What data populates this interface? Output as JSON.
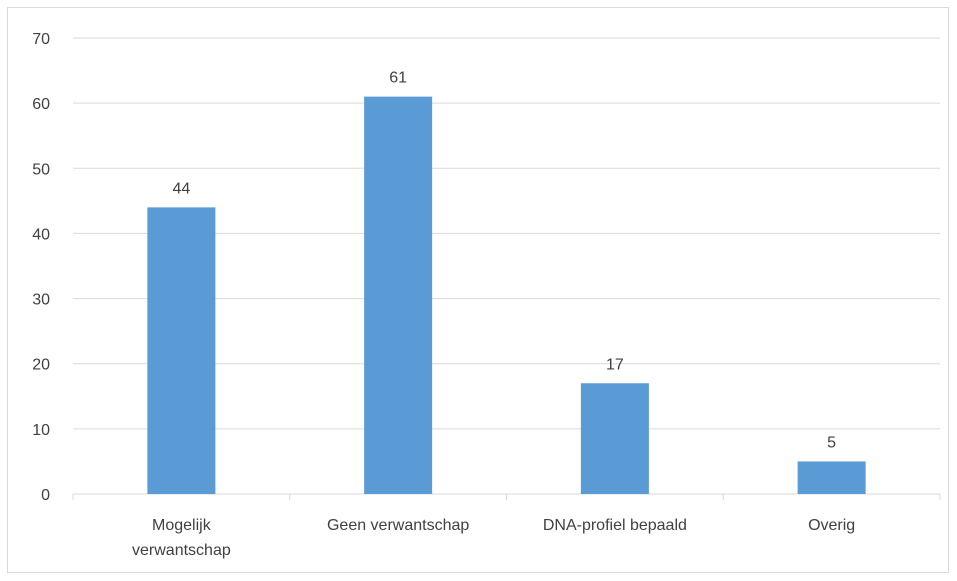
{
  "chart_data": {
    "type": "bar",
    "title": "",
    "xlabel": "",
    "ylabel": "",
    "categories": [
      [
        "Mogelijk",
        "verwantschap"
      ],
      [
        "Geen verwantschap"
      ],
      [
        "DNA-profiel bepaald"
      ],
      [
        "Overig"
      ]
    ],
    "values": [
      44,
      61,
      17,
      5
    ],
    "data_labels": [
      "44",
      "61",
      "17",
      "5"
    ],
    "ylim": [
      0,
      70
    ],
    "yticks": [
      "0",
      "10",
      "20",
      "30",
      "40",
      "50",
      "60",
      "70"
    ],
    "grid": true,
    "legend": "none",
    "colors": {
      "bar": "#5b9bd5",
      "grid": "#d9d9d9",
      "text": "#404040"
    }
  }
}
